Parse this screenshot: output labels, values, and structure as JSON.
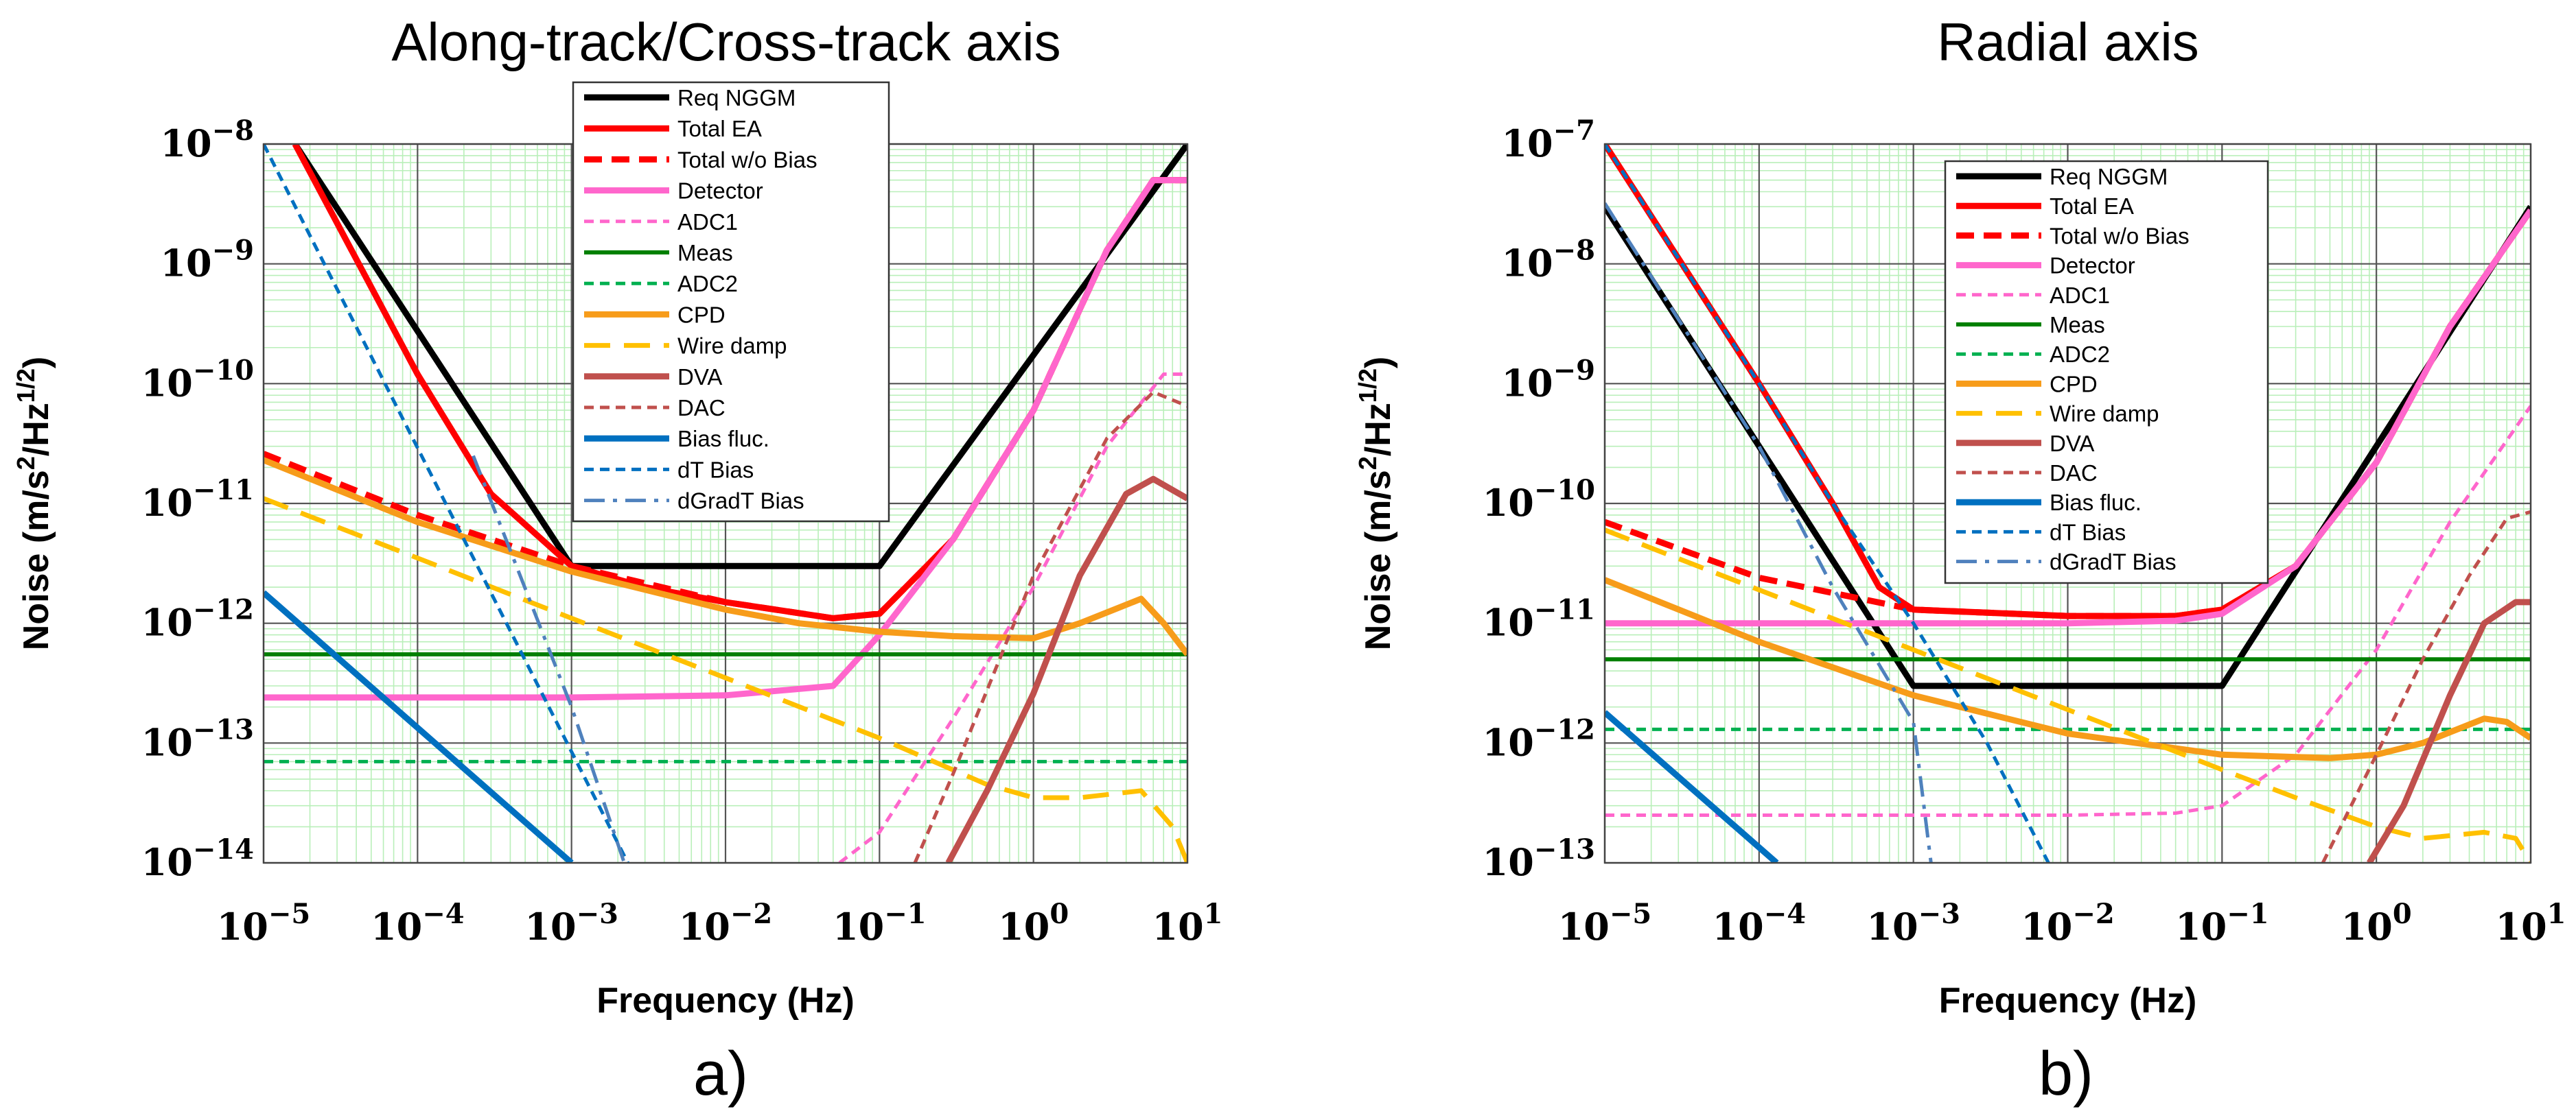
{
  "legend_entries": [
    {
      "name": "Req NGGM",
      "color": "#000000",
      "dash": "solid",
      "width": 9
    },
    {
      "name": "Total EA",
      "color": "#ff0000",
      "dash": "solid",
      "width": 9
    },
    {
      "name": "Total w/o Bias",
      "color": "#ff0000",
      "dash": "dash",
      "width": 9
    },
    {
      "name": "Detector",
      "color": "#ff66cc",
      "dash": "solid",
      "width": 9
    },
    {
      "name": "ADC1",
      "color": "#ff66cc",
      "dash": "shortdash",
      "width": 5
    },
    {
      "name": "Meas",
      "color": "#008000",
      "dash": "solid",
      "width": 6
    },
    {
      "name": "ADC2",
      "color": "#00b050",
      "dash": "shortdash",
      "width": 5
    },
    {
      "name": "CPD",
      "color": "#f79c1a",
      "dash": "solid",
      "width": 9
    },
    {
      "name": "Wire damp",
      "color": "#ffc000",
      "dash": "longdash",
      "width": 7
    },
    {
      "name": "DVA",
      "color": "#c0504d",
      "dash": "solid",
      "width": 9
    },
    {
      "name": "DAC",
      "color": "#c0504d",
      "dash": "shortdash",
      "width": 5
    },
    {
      "name": "Bias fluc.",
      "color": "#0070c0",
      "dash": "solid",
      "width": 9
    },
    {
      "name": "dT Bias",
      "color": "#0070c0",
      "dash": "shortdash",
      "width": 5
    },
    {
      "name": "dGradT Bias",
      "color": "#4f81bd",
      "dash": "dashdot",
      "width": 5
    }
  ],
  "chart_data": [
    {
      "type": "line",
      "title": "Along-track/Cross-track axis",
      "xlabel": "Frequency (Hz)",
      "ylabel_main": "Noise (m/s",
      "ylabel_sup1": "2",
      "ylabel_mid": "/Hz",
      "ylabel_sup2": "1/2",
      "ylabel_end": ")",
      "panel_label": "a)",
      "xscale": "log",
      "yscale": "log",
      "xlim": [
        1e-05,
        10
      ],
      "ylim": [
        1e-14,
        1e-08
      ],
      "x_tick_exponents": [
        "−5",
        "−4",
        "−3",
        "−2",
        "−1",
        "0",
        "1"
      ],
      "y_tick_exponents": [
        "−14",
        "−13",
        "−12",
        "−11",
        "−10",
        "−9",
        "−8"
      ],
      "grid": true,
      "legend_position": "top-center",
      "series": [
        {
          "name": "Req NGGM",
          "x": [
            1.6e-05,
            0.001,
            0.1,
            10
          ],
          "y": [
            1e-08,
            3e-12,
            3e-12,
            1e-08
          ]
        },
        {
          "name": "Total EA",
          "x": [
            1.6e-05,
            0.0001,
            0.0003,
            0.001,
            0.003,
            0.01,
            0.05,
            0.1,
            0.3,
            1,
            3,
            6,
            10
          ],
          "y": [
            1e-08,
            1.2e-10,
            1.2e-11,
            3e-12,
            2e-12,
            1.5e-12,
            1.1e-12,
            1.2e-12,
            5e-12,
            6e-11,
            1.3e-09,
            5e-09,
            5e-09
          ]
        },
        {
          "name": "Total w/o Bias",
          "x": [
            1e-05,
            0.0001,
            0.001,
            0.01,
            0.05,
            0.1,
            0.3,
            1,
            3,
            6,
            10
          ],
          "y": [
            2.6e-11,
            8e-12,
            3e-12,
            1.5e-12,
            1.1e-12,
            1.2e-12,
            5e-12,
            6e-11,
            1.3e-09,
            5e-09,
            5e-09
          ]
        },
        {
          "name": "Detector",
          "x": [
            1e-05,
            0.001,
            0.01,
            0.05,
            0.1,
            0.3,
            1,
            3,
            6,
            10
          ],
          "y": [
            2.4e-13,
            2.4e-13,
            2.5e-13,
            3e-13,
            8e-13,
            5e-12,
            6e-11,
            1.3e-09,
            5e-09,
            5e-09
          ]
        },
        {
          "name": "ADC1",
          "x": [
            0.055,
            0.1,
            0.3,
            1,
            3,
            7,
            10
          ],
          "y": [
            1e-14,
            1.8e-14,
            1.6e-13,
            2e-12,
            3e-11,
            1.2e-10,
            1.2e-10
          ]
        },
        {
          "name": "Meas",
          "x": [
            1e-05,
            10
          ],
          "y": [
            5.5e-13,
            5.5e-13
          ]
        },
        {
          "name": "ADC2",
          "x": [
            1e-05,
            10
          ],
          "y": [
            7e-14,
            7e-14
          ]
        },
        {
          "name": "CPD",
          "x": [
            1e-05,
            0.0001,
            0.001,
            0.01,
            0.03,
            0.1,
            0.3,
            1,
            2,
            5,
            7,
            10
          ],
          "y": [
            2.3e-11,
            7e-12,
            2.7e-12,
            1.3e-12,
            1e-12,
            8.5e-13,
            7.8e-13,
            7.5e-13,
            1e-12,
            1.6e-12,
            1e-12,
            5.5e-13
          ]
        },
        {
          "name": "Wire damp",
          "x": [
            1e-05,
            0.0001,
            0.001,
            0.01,
            0.1,
            0.5,
            1,
            2,
            5,
            8,
            10
          ],
          "y": [
            1.1e-11,
            3.5e-12,
            1.1e-12,
            3.5e-13,
            1.1e-13,
            4.5e-14,
            3.5e-14,
            3.5e-14,
            4e-14,
            2e-14,
            1e-14
          ]
        },
        {
          "name": "DVA",
          "x": [
            0.28,
            0.5,
            1,
            2,
            4,
            6,
            10
          ],
          "y": [
            1e-14,
            4e-14,
            2.6e-13,
            2.5e-12,
            1.2e-11,
            1.6e-11,
            1.1e-11
          ]
        },
        {
          "name": "DAC",
          "x": [
            0.17,
            0.3,
            1,
            3,
            6,
            10
          ],
          "y": [
            1e-14,
            5.5e-14,
            2.5e-12,
            3.5e-11,
            8.5e-11,
            6.5e-11
          ]
        },
        {
          "name": "Bias fluc.",
          "x": [
            1e-05,
            0.001
          ],
          "y": [
            1.8e-12,
            1e-14
          ]
        },
        {
          "name": "dT Bias",
          "x": [
            1e-05,
            0.00232
          ],
          "y": [
            1e-08,
            1e-14
          ]
        },
        {
          "name": "dGradT Bias",
          "x": [
            0.00023,
            0.001,
            0.0022
          ],
          "y": [
            2.5e-11,
            2e-13,
            1e-14
          ]
        }
      ]
    },
    {
      "type": "line",
      "title": "Radial axis",
      "xlabel": "Frequency (Hz)",
      "ylabel_main": "Noise (m/s",
      "ylabel_sup1": "2",
      "ylabel_mid": "/Hz",
      "ylabel_sup2": "1/2",
      "ylabel_end": ")",
      "panel_label": "b)",
      "xscale": "log",
      "yscale": "log",
      "xlim": [
        1e-05,
        10
      ],
      "ylim": [
        1e-13,
        1e-07
      ],
      "x_tick_exponents": [
        "−5",
        "−4",
        "−3",
        "−2",
        "−1",
        "0",
        "1"
      ],
      "y_tick_exponents": [
        "−13",
        "−12",
        "−11",
        "−10",
        "−9",
        "−8",
        "−7"
      ],
      "grid": true,
      "legend_position": "top-center",
      "series": [
        {
          "name": "Req NGGM",
          "x": [
            1e-05,
            0.001,
            0.1,
            10
          ],
          "y": [
            3e-08,
            3e-12,
            3e-12,
            3e-08
          ]
        },
        {
          "name": "Total EA",
          "x": [
            1e-05,
            0.0001,
            0.0003,
            0.0006,
            0.001,
            0.01,
            0.05,
            0.1,
            0.3,
            1,
            3,
            10
          ],
          "y": [
            1e-07,
            1e-09,
            1e-10,
            2e-11,
            1.3e-11,
            1.15e-11,
            1.15e-11,
            1.3e-11,
            3e-11,
            2.2e-10,
            3e-09,
            2.8e-08
          ]
        },
        {
          "name": "Total w/o Bias",
          "x": [
            1e-05,
            0.0001,
            0.001,
            0.01,
            0.05,
            0.1,
            0.3,
            1,
            3,
            10
          ],
          "y": [
            7e-11,
            2.4e-11,
            1.3e-11,
            1.15e-11,
            1.15e-11,
            1.3e-11,
            3e-11,
            2.2e-10,
            3e-09,
            2.8e-08
          ]
        },
        {
          "name": "Detector",
          "x": [
            1e-05,
            0.01,
            0.05,
            0.1,
            0.3,
            1,
            3,
            10
          ],
          "y": [
            1e-11,
            1e-11,
            1.05e-11,
            1.2e-11,
            3e-11,
            2.2e-10,
            3e-09,
            2.8e-08
          ]
        },
        {
          "name": "ADC1",
          "x": [
            1e-05,
            0.01,
            0.05,
            0.1,
            0.3,
            1,
            3,
            10
          ],
          "y": [
            2.5e-13,
            2.5e-13,
            2.6e-13,
            3e-13,
            8e-13,
            6e-12,
            7e-11,
            6.5e-10
          ]
        },
        {
          "name": "Meas",
          "x": [
            1e-05,
            10
          ],
          "y": [
            5e-12,
            5e-12
          ]
        },
        {
          "name": "ADC2",
          "x": [
            1e-05,
            10
          ],
          "y": [
            1.3e-12,
            1.3e-12
          ]
        },
        {
          "name": "CPD",
          "x": [
            1e-05,
            0.0001,
            0.001,
            0.01,
            0.1,
            0.5,
            1,
            2,
            5,
            7,
            10
          ],
          "y": [
            2.3e-11,
            7e-12,
            2.5e-12,
            1.2e-12,
            8e-13,
            7.5e-13,
            8e-13,
            1e-12,
            1.6e-12,
            1.5e-12,
            1.1e-12
          ]
        },
        {
          "name": "Wire damp",
          "x": [
            1e-05,
            0.0001,
            0.001,
            0.01,
            0.1,
            0.3,
            1,
            2,
            5,
            8,
            10
          ],
          "y": [
            6e-11,
            1.9e-11,
            6e-12,
            1.9e-12,
            6e-13,
            3.5e-13,
            2e-13,
            1.6e-13,
            1.8e-13,
            1.6e-13,
            1e-13
          ]
        },
        {
          "name": "DVA",
          "x": [
            0.9,
            1.5,
            3,
            5,
            8,
            10
          ],
          "y": [
            1e-13,
            3e-13,
            2.5e-12,
            1e-11,
            1.5e-11,
            1.5e-11
          ]
        },
        {
          "name": "DAC",
          "x": [
            0.45,
            1,
            2,
            4,
            7,
            10
          ],
          "y": [
            1e-13,
            8e-13,
            5e-12,
            2.5e-11,
            7.5e-11,
            8.5e-11
          ]
        },
        {
          "name": "Bias fluc.",
          "x": [
            1e-05,
            0.00013
          ],
          "y": [
            1.8e-12,
            1e-13
          ]
        },
        {
          "name": "dT Bias",
          "x": [
            1e-05,
            0.0001,
            0.0003,
            0.001,
            0.003,
            0.0075
          ],
          "y": [
            1e-07,
            1e-09,
            1e-10,
            1e-11,
            1e-12,
            1e-13
          ]
        },
        {
          "name": "dGradT Bias",
          "x": [
            1e-05,
            0.0001,
            0.0003,
            0.001,
            0.0013
          ],
          "y": [
            3.2e-08,
            3e-10,
            2e-11,
            1.5e-12,
            1e-13
          ]
        }
      ]
    }
  ]
}
